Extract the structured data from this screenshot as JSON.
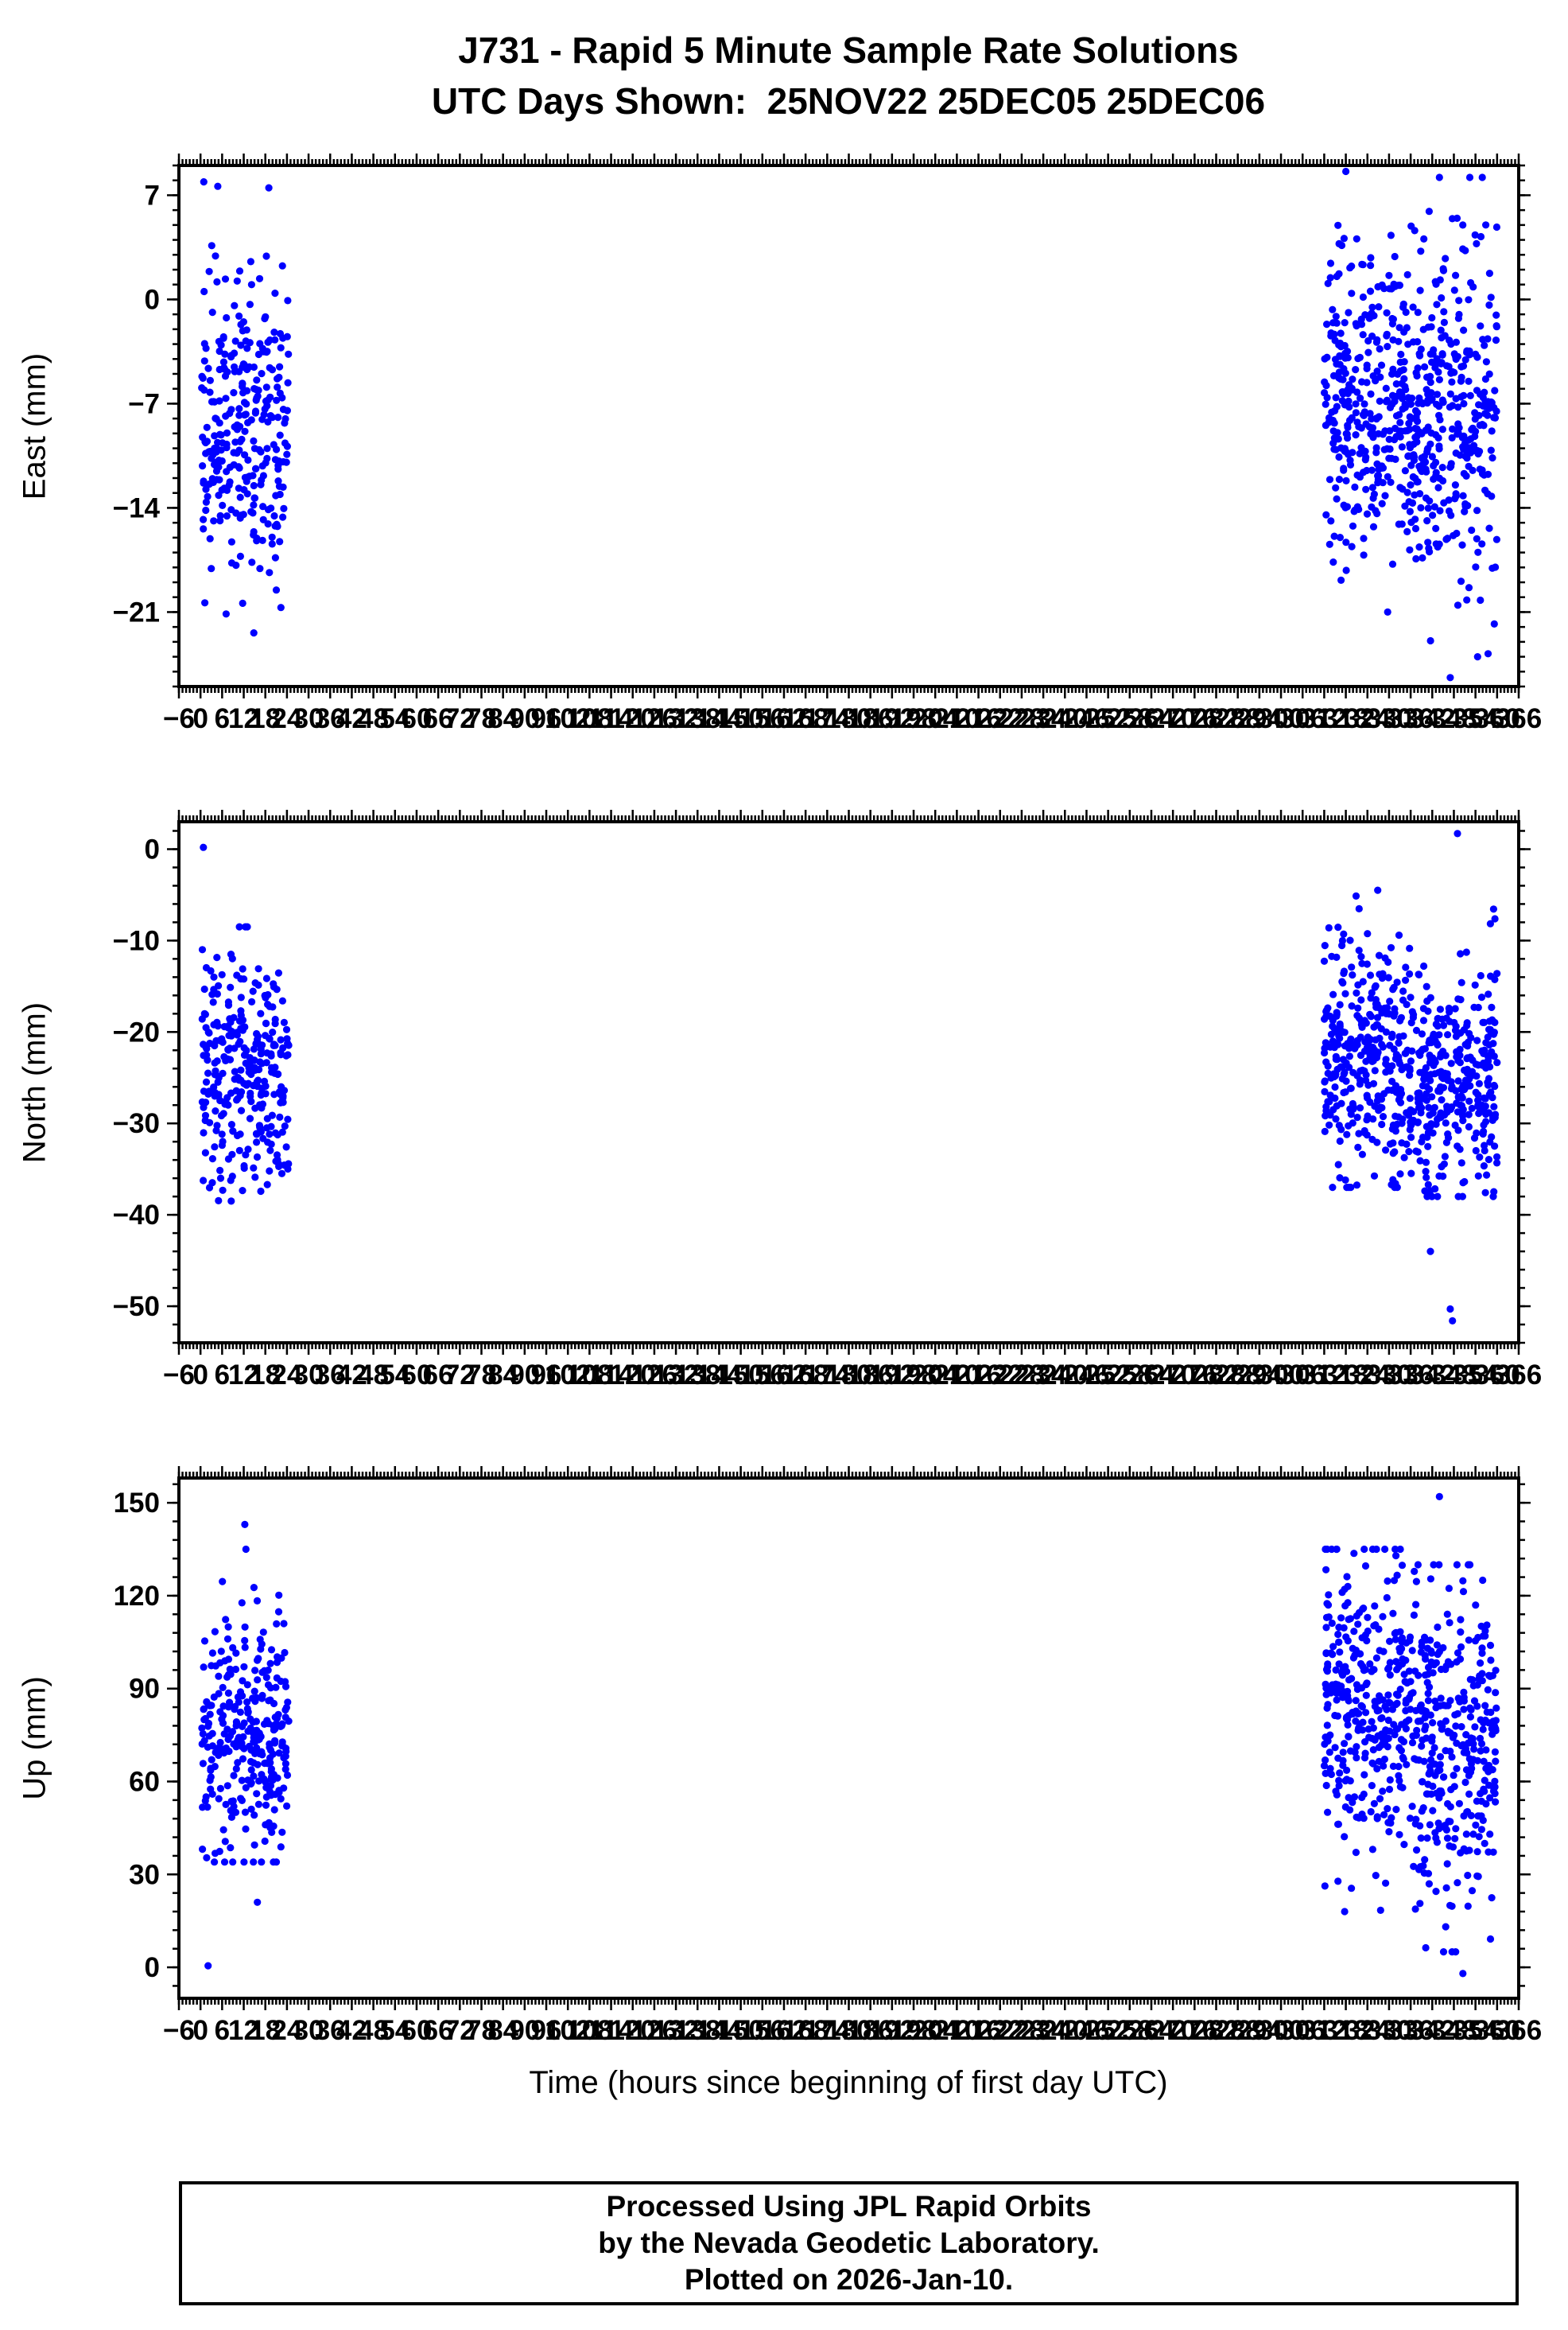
{
  "title": {
    "line1": "J731 - Rapid 5 Minute Sample Rate Solutions",
    "line2": "UTC Days Shown:  25NOV22 25DEC05 25DEC06"
  },
  "x_axis": {
    "label": "Time (hours since beginning of first day UTC)",
    "min": -6,
    "max": 366,
    "major_tick": 6,
    "minor_tick": 1
  },
  "marker": {
    "color": "#0000ff",
    "radius": 4.6
  },
  "seed": 42,
  "chart_data": [
    {
      "name": "east",
      "type": "scatter",
      "ylabel": "East (mm)",
      "ylim": [
        -26,
        9
      ],
      "yticks": [
        7,
        0,
        -7,
        -14,
        -21
      ],
      "y_minor_step": 1,
      "clusters": [
        {
          "x": [
            0.3,
            24.5
          ],
          "n": 300,
          "y_mean": -8.5,
          "y_std": 5.2,
          "y_clamp": [
            -21.5,
            7.5
          ]
        },
        {
          "x": [
            312,
            336
          ],
          "n": 330,
          "y_mean": -7.0,
          "y_std": 5.0,
          "y_clamp": [
            -21,
            7.8
          ]
        },
        {
          "x": [
            336,
            360
          ],
          "n": 330,
          "y_mean": -8.0,
          "y_std": 6.0,
          "y_clamp": [
            -24,
            8.2
          ]
        }
      ],
      "outliers": [
        [
          14.8,
          -22.4
        ],
        [
          0.9,
          7.9
        ],
        [
          4.8,
          7.6
        ],
        [
          318,
          8.6
        ],
        [
          344,
          8.2
        ],
        [
          347,
          -25.4
        ],
        [
          357.5,
          -23.8
        ]
      ]
    },
    {
      "name": "north",
      "type": "scatter",
      "ylabel": "North (mm)",
      "ylim": [
        -54,
        3
      ],
      "yticks": [
        0,
        -10,
        -20,
        -30,
        -40,
        -50
      ],
      "y_minor_step": 2,
      "clusters": [
        {
          "x": [
            0.3,
            24.5
          ],
          "n": 300,
          "y_mean": -25,
          "y_std": 6.2,
          "y_clamp": [
            -38.5,
            -8.5
          ]
        },
        {
          "x": [
            312,
            336
          ],
          "n": 330,
          "y_mean": -23,
          "y_std": 7.0,
          "y_clamp": [
            -37,
            -3.5
          ]
        },
        {
          "x": [
            336,
            360
          ],
          "n": 330,
          "y_mean": -25,
          "y_std": 6.0,
          "y_clamp": [
            -38,
            -6
          ]
        }
      ],
      "outliers": [
        [
          0.8,
          0.2
        ],
        [
          349,
          1.7
        ],
        [
          341.5,
          -44
        ],
        [
          347,
          -50.3
        ],
        [
          347.6,
          -51.6
        ]
      ]
    },
    {
      "name": "up",
      "type": "scatter",
      "ylabel": "Up (mm)",
      "ylim": [
        -10,
        158
      ],
      "yticks": [
        0,
        30,
        60,
        90,
        120,
        150
      ],
      "y_minor_step": 6,
      "clusters": [
        {
          "x": [
            0.3,
            24.5
          ],
          "n": 300,
          "y_mean": 73,
          "y_std": 19,
          "y_clamp": [
            34,
            126
          ]
        },
        {
          "x": [
            312,
            336
          ],
          "n": 330,
          "y_mean": 82,
          "y_std": 24,
          "y_clamp": [
            18,
            135
          ]
        },
        {
          "x": [
            336,
            360
          ],
          "n": 330,
          "y_mean": 70,
          "y_std": 26,
          "y_clamp": [
            5,
            130
          ]
        }
      ],
      "outliers": [
        [
          2.1,
          0.5
        ],
        [
          12.3,
          143
        ],
        [
          12.6,
          135
        ],
        [
          15.8,
          21
        ],
        [
          344,
          152
        ],
        [
          350.5,
          -2
        ],
        [
          352,
          130
        ],
        [
          356,
          125
        ]
      ]
    }
  ],
  "footer": {
    "line1": "Processed Using JPL Rapid Orbits",
    "line2": "by the Nevada Geodetic Laboratory.",
    "line3": "Plotted on 2026-Jan-10."
  }
}
